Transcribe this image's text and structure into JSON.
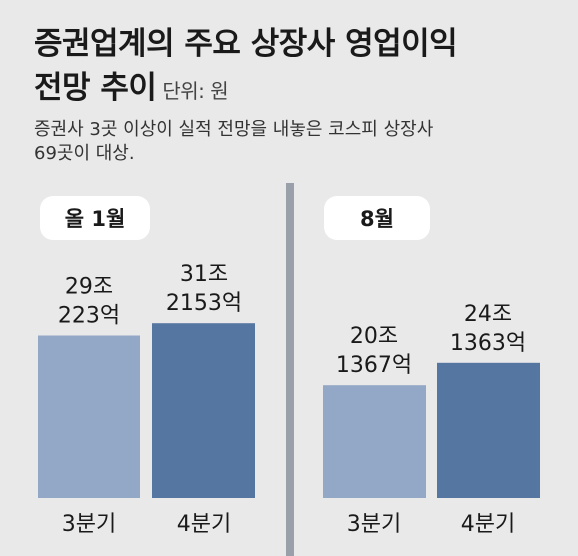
{
  "title": {
    "line1": "증권업계의 주요 상장사 영업이익",
    "line2": "전망 추이",
    "unit": "단위: 원"
  },
  "subtitle": {
    "line1": "증권사 3곳 이상이 실적 전망을 내놓은 코스피 상장사",
    "line2": "69곳이 대상."
  },
  "colors": {
    "background": "#e9e9e9",
    "q3_bar": "#93a8c6",
    "q4_bar": "#5676a2",
    "divider": "#9aa0aa",
    "pill": "#ffffff"
  },
  "chart_data": [
    {
      "type": "bar",
      "panel": "올 1월",
      "categories": [
        "3분기",
        "4분기"
      ],
      "values": [
        29.0223,
        31.2153
      ],
      "value_labels": [
        [
          "29조",
          "223억"
        ],
        [
          "31조",
          "2153억"
        ]
      ],
      "unit": "조 원",
      "ylim": [
        0,
        40
      ]
    },
    {
      "type": "bar",
      "panel": "8월",
      "categories": [
        "3분기",
        "4분기"
      ],
      "values": [
        20.1367,
        24.1363
      ],
      "value_labels": [
        [
          "20조",
          "1367억"
        ],
        [
          "24조",
          "1363억"
        ]
      ],
      "unit": "조 원",
      "ylim": [
        0,
        40
      ]
    }
  ]
}
